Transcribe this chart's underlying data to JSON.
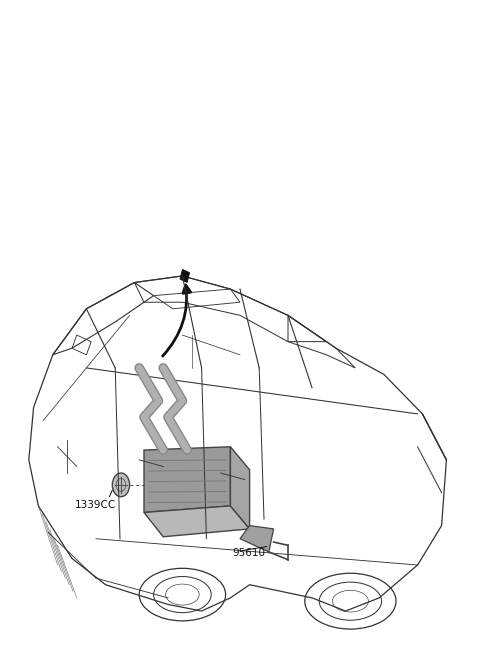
{
  "background_color": "#ffffff",
  "fig_width": 4.8,
  "fig_height": 6.57,
  "dpi": 100,
  "label_1339CC": "1339CC",
  "label_95610": "95610",
  "car_color": "#333333",
  "car_lw": 0.9,
  "part_face": "#b0b0b0",
  "part_dark": "#888888",
  "part_edge": "#444444",
  "arrow_color": "#111111",
  "text_color": "#111111",
  "font_size": 7.5
}
